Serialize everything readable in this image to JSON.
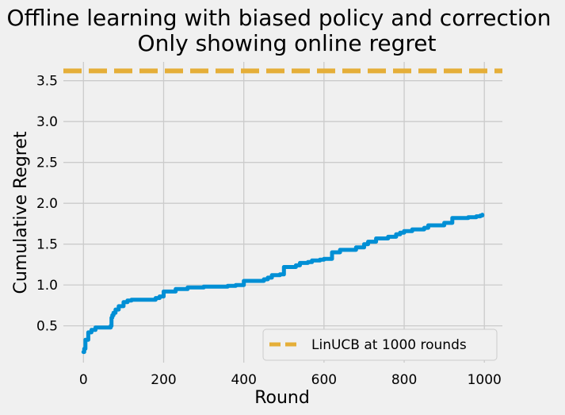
{
  "chart_data": {
    "type": "line",
    "title": "Offline learning with biased policy and correction",
    "subtitle": "Only showing online regret",
    "xlabel": "Round",
    "ylabel": "Cumulative Regret",
    "xlim": [
      -50,
      1045
    ],
    "ylim": [
      0.05,
      3.73
    ],
    "xticks": [
      0,
      200,
      400,
      600,
      800,
      1000
    ],
    "yticks": [
      0.5,
      1.0,
      1.5,
      2.0,
      2.5,
      3.0,
      3.5
    ],
    "xtick_labels": [
      "0",
      "200",
      "400",
      "600",
      "800",
      "1000"
    ],
    "ytick_labels": [
      "0.5",
      "1.0",
      "1.5",
      "2.0",
      "2.5",
      "3.0",
      "3.5"
    ],
    "grid": true,
    "legend_position": "lower-right",
    "series": [
      {
        "color": "#008fd5",
        "style": "solid-step",
        "x": [
          0,
          2,
          5,
          8,
          12,
          20,
          30,
          60,
          68,
          70,
          72,
          75,
          80,
          88,
          100,
          110,
          120,
          180,
          190,
          200,
          230,
          260,
          300,
          360,
          380,
          400,
          450,
          460,
          470,
          490,
          500,
          530,
          540,
          560,
          570,
          590,
          600,
          620,
          640,
          680,
          700,
          710,
          730,
          760,
          780,
          790,
          800,
          820,
          850,
          860,
          900,
          920,
          960,
          980,
          990,
          995
        ],
        "y": [
          0.18,
          0.22,
          0.33,
          0.33,
          0.42,
          0.45,
          0.48,
          0.48,
          0.5,
          0.6,
          0.63,
          0.66,
          0.7,
          0.74,
          0.79,
          0.81,
          0.82,
          0.84,
          0.86,
          0.92,
          0.95,
          0.97,
          0.98,
          0.99,
          1.0,
          1.05,
          1.07,
          1.09,
          1.12,
          1.13,
          1.22,
          1.24,
          1.27,
          1.28,
          1.3,
          1.31,
          1.32,
          1.4,
          1.43,
          1.46,
          1.5,
          1.53,
          1.57,
          1.59,
          1.62,
          1.64,
          1.66,
          1.68,
          1.7,
          1.73,
          1.76,
          1.82,
          1.83,
          1.84,
          1.85,
          1.86
        ]
      },
      {
        "name": "LinUCB at 1000 rounds",
        "color": "#e5ae38",
        "style": "dashed",
        "y_constant": 3.62
      }
    ]
  }
}
